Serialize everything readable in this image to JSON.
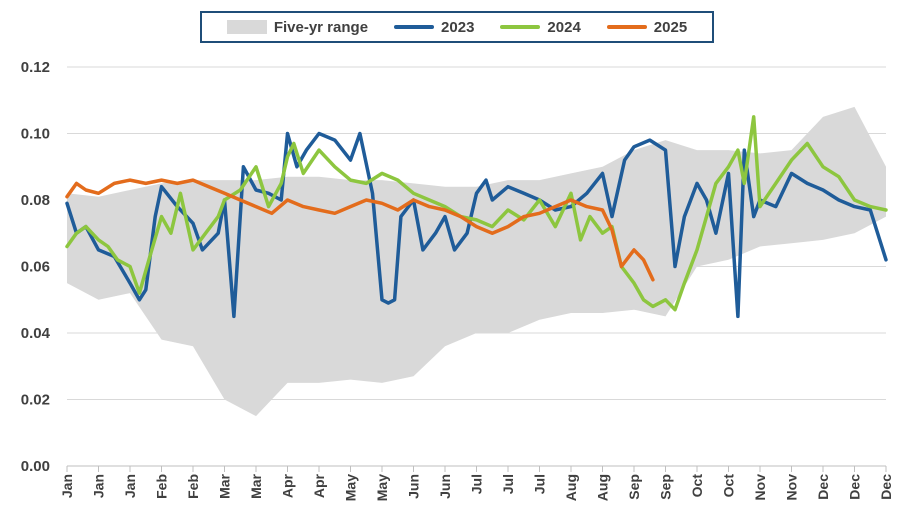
{
  "chart_data": {
    "type": "line",
    "title": "",
    "xlabel": "",
    "ylabel": "",
    "ylim": [
      0,
      0.12
    ],
    "yticks": [
      "0.00",
      "0.02",
      "0.04",
      "0.06",
      "0.08",
      "0.10",
      "0.12"
    ],
    "x_tick_labels": [
      "Jan",
      "Jan",
      "Jan",
      "Feb",
      "Feb",
      "Mar",
      "Mar",
      "Apr",
      "Apr",
      "May",
      "May",
      "Jun",
      "Jun",
      "Jul",
      "Jul",
      "Jul",
      "Aug",
      "Aug",
      "Sep",
      "Sep",
      "Oct",
      "Oct",
      "Nov",
      "Nov",
      "Dec",
      "Dec",
      "Dec"
    ],
    "x_unit": "week",
    "grid": true,
    "legend_position": "top",
    "range_band": {
      "name": "Five-yr range",
      "color": "#d9d9d9",
      "x": [
        0,
        1,
        2,
        3,
        4,
        5,
        6,
        7,
        8,
        9,
        10,
        11,
        12,
        13,
        14,
        15,
        16,
        17,
        18,
        19,
        20,
        21,
        22,
        23,
        24,
        25,
        26
      ],
      "low": [
        0.055,
        0.05,
        0.052,
        0.038,
        0.036,
        0.02,
        0.015,
        0.025,
        0.025,
        0.026,
        0.025,
        0.027,
        0.036,
        0.04,
        0.04,
        0.044,
        0.046,
        0.046,
        0.047,
        0.045,
        0.06,
        0.062,
        0.066,
        0.067,
        0.068,
        0.07,
        0.075
      ],
      "high": [
        0.082,
        0.081,
        0.083,
        0.085,
        0.086,
        0.086,
        0.086,
        0.087,
        0.087,
        0.086,
        0.086,
        0.085,
        0.084,
        0.084,
        0.086,
        0.086,
        0.088,
        0.09,
        0.095,
        0.098,
        0.095,
        0.095,
        0.094,
        0.095,
        0.105,
        0.108,
        0.09
      ]
    },
    "series": [
      {
        "name": "2023",
        "color": "#1f5c99",
        "x": [
          0,
          0.3,
          0.6,
          1.0,
          1.5,
          2.0,
          2.3,
          2.5,
          2.8,
          3.0,
          3.5,
          4.0,
          4.3,
          4.8,
          5.0,
          5.3,
          5.6,
          6.0,
          6.4,
          6.8,
          7.0,
          7.3,
          7.6,
          8.0,
          8.5,
          9.0,
          9.3,
          9.7,
          10.0,
          10.2,
          10.4,
          10.6,
          11.0,
          11.3,
          11.7,
          12.0,
          12.3,
          12.7,
          13.0,
          13.3,
          13.5,
          14.0,
          14.5,
          15.0,
          15.5,
          16.0,
          16.5,
          17.0,
          17.3,
          17.7,
          18.0,
          18.5,
          19.0,
          19.3,
          19.6,
          20.0,
          20.3,
          20.6,
          21.0,
          21.3,
          21.5,
          21.8,
          22.0,
          22.5,
          23.0,
          23.5,
          24.0,
          24.5,
          25.0,
          25.5,
          26.0
        ],
        "values": [
          0.079,
          0.07,
          0.072,
          0.065,
          0.063,
          0.055,
          0.05,
          0.053,
          0.075,
          0.084,
          0.078,
          0.073,
          0.065,
          0.07,
          0.08,
          0.045,
          0.09,
          0.083,
          0.082,
          0.08,
          0.1,
          0.09,
          0.095,
          0.1,
          0.098,
          0.092,
          0.1,
          0.082,
          0.05,
          0.049,
          0.05,
          0.075,
          0.08,
          0.065,
          0.07,
          0.075,
          0.065,
          0.07,
          0.082,
          0.086,
          0.08,
          0.084,
          0.082,
          0.08,
          0.077,
          0.078,
          0.082,
          0.088,
          0.075,
          0.092,
          0.096,
          0.098,
          0.095,
          0.06,
          0.075,
          0.085,
          0.08,
          0.07,
          0.088,
          0.045,
          0.095,
          0.075,
          0.08,
          0.078,
          0.088,
          0.085,
          0.083,
          0.08,
          0.078,
          0.077,
          0.062
        ]
      },
      {
        "name": "2024",
        "color": "#8dc63f",
        "x": [
          0,
          0.3,
          0.6,
          1.0,
          1.3,
          1.6,
          2.0,
          2.3,
          2.6,
          3.0,
          3.3,
          3.6,
          4.0,
          4.4,
          4.8,
          5.0,
          5.5,
          6.0,
          6.4,
          6.8,
          7.0,
          7.2,
          7.5,
          8.0,
          8.5,
          9.0,
          9.5,
          10.0,
          10.5,
          11.0,
          11.5,
          12.0,
          12.5,
          13.0,
          13.5,
          14.0,
          14.5,
          15.0,
          15.5,
          16.0,
          16.3,
          16.6,
          17.0,
          17.3,
          17.6,
          18.0,
          18.3,
          18.6,
          19.0,
          19.3,
          19.6,
          20.0,
          20.3,
          20.6,
          21.0,
          21.3,
          21.5,
          21.8,
          22.0,
          22.5,
          23.0,
          23.5,
          24.0,
          24.5,
          25.0,
          25.5,
          26.0
        ],
        "values": [
          0.066,
          0.07,
          0.072,
          0.068,
          0.066,
          0.062,
          0.06,
          0.052,
          0.062,
          0.075,
          0.07,
          0.082,
          0.065,
          0.07,
          0.075,
          0.08,
          0.083,
          0.09,
          0.078,
          0.085,
          0.093,
          0.097,
          0.088,
          0.095,
          0.09,
          0.086,
          0.085,
          0.088,
          0.086,
          0.082,
          0.08,
          0.078,
          0.075,
          0.074,
          0.072,
          0.077,
          0.074,
          0.08,
          0.072,
          0.082,
          0.068,
          0.075,
          0.07,
          0.072,
          0.06,
          0.055,
          0.05,
          0.048,
          0.05,
          0.047,
          0.055,
          0.065,
          0.075,
          0.085,
          0.09,
          0.095,
          0.085,
          0.105,
          0.078,
          0.085,
          0.092,
          0.097,
          0.09,
          0.087,
          0.08,
          0.078,
          0.077
        ]
      },
      {
        "name": "2025",
        "color": "#e36c1c",
        "x": [
          0,
          0.3,
          0.6,
          1.0,
          1.5,
          2.0,
          2.5,
          3.0,
          3.5,
          4.0,
          4.5,
          5.0,
          5.5,
          6.0,
          6.5,
          7.0,
          7.5,
          8.0,
          8.5,
          9.0,
          9.5,
          10.0,
          10.5,
          11.0,
          11.5,
          12.0,
          12.5,
          13.0,
          13.5,
          14.0,
          14.5,
          15.0,
          15.5,
          16.0,
          16.5,
          17.0,
          17.3,
          17.6,
          18.0,
          18.3,
          18.6
        ],
        "values": [
          0.081,
          0.085,
          0.083,
          0.082,
          0.085,
          0.086,
          0.085,
          0.086,
          0.085,
          0.086,
          0.084,
          0.082,
          0.08,
          0.078,
          0.076,
          0.08,
          0.078,
          0.077,
          0.076,
          0.078,
          0.08,
          0.079,
          0.077,
          0.08,
          0.078,
          0.077,
          0.075,
          0.072,
          0.07,
          0.072,
          0.075,
          0.076,
          0.078,
          0.08,
          0.078,
          0.077,
          0.071,
          0.06,
          0.065,
          0.062,
          0.056
        ]
      }
    ]
  }
}
